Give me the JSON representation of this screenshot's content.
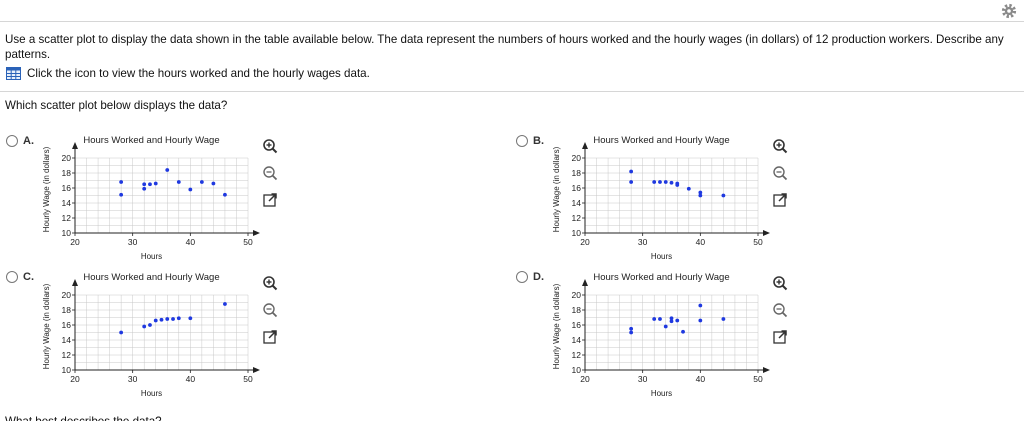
{
  "question": {
    "text": "Use a scatter plot to display the data shown in the table available below. The data represent the numbers of hours worked and the hourly wages (in dollars) of 12 production workers. Describe any patterns.",
    "data_link": "Click the icon to view the hours worked and the hourly wages data.",
    "sub_question": "Which scatter plot below displays the data?",
    "next_question": "What best describes the data?"
  },
  "icons": {
    "settings": "gear-icon",
    "data_table": "table-icon",
    "zoom_in": "zoom-in-icon",
    "zoom_out": "zoom-out-icon",
    "open_new": "open-in-new-window-icon"
  },
  "colors": {
    "points": "#1f39e0",
    "grid": "#c8c8c8",
    "accent": "#2a62b8"
  },
  "options": [
    {
      "letter": "A."
    },
    {
      "letter": "B."
    },
    {
      "letter": "C."
    },
    {
      "letter": "D."
    }
  ],
  "chart_data": [
    {
      "type": "scatter",
      "option": "A",
      "title": "Hours Worked and Hourly Wage",
      "xlabel": "Hours",
      "ylabel": "Hourly Wage (in dollars)",
      "xlim": [
        20,
        50
      ],
      "ylim": [
        10,
        20
      ],
      "xticks": [
        20,
        30,
        40,
        50
      ],
      "yticks": [
        10,
        12,
        14,
        16,
        18,
        20
      ],
      "x": [
        28,
        28,
        32,
        32,
        33,
        34,
        36,
        38,
        40,
        42,
        44,
        46
      ],
      "y": [
        16.8,
        15.1,
        16.5,
        15.9,
        16.5,
        16.6,
        18.4,
        16.8,
        15.8,
        16.8,
        16.6,
        15.1
      ]
    },
    {
      "type": "scatter",
      "option": "B",
      "title": "Hours Worked and Hourly Wage",
      "xlabel": "Hours",
      "ylabel": "Hourly Wage (in dollars)",
      "xlim": [
        20,
        50
      ],
      "ylim": [
        10,
        20
      ],
      "xticks": [
        20,
        30,
        40,
        50
      ],
      "yticks": [
        10,
        12,
        14,
        16,
        18,
        20
      ],
      "x": [
        28,
        28,
        32,
        33,
        34,
        35,
        36,
        36,
        38,
        40,
        40,
        44
      ],
      "y": [
        18.2,
        16.8,
        16.8,
        16.8,
        16.8,
        16.7,
        16.6,
        16.4,
        15.9,
        15.4,
        15.0,
        15.0
      ]
    },
    {
      "type": "scatter",
      "option": "C",
      "title": "Hours Worked and Hourly Wage",
      "xlabel": "Hours",
      "ylabel": "Hourly Wage (in dollars)",
      "xlim": [
        20,
        50
      ],
      "ylim": [
        10,
        20
      ],
      "xticks": [
        20,
        30,
        40,
        50
      ],
      "yticks": [
        10,
        12,
        14,
        16,
        18,
        20
      ],
      "x": [
        28,
        32,
        33,
        34,
        35,
        36,
        37,
        38,
        40,
        46
      ],
      "y": [
        15.0,
        15.8,
        16.0,
        16.6,
        16.7,
        16.8,
        16.8,
        16.9,
        16.9,
        18.8
      ]
    },
    {
      "type": "scatter",
      "option": "D",
      "title": "Hours Worked and Hourly Wage",
      "xlabel": "Hours",
      "ylabel": "Hourly Wage (in dollars)",
      "xlim": [
        20,
        50
      ],
      "ylim": [
        10,
        20
      ],
      "xticks": [
        20,
        30,
        40,
        50
      ],
      "yticks": [
        10,
        12,
        14,
        16,
        18,
        20
      ],
      "x": [
        28,
        28,
        32,
        33,
        34,
        35,
        35,
        36,
        37,
        40,
        40,
        44
      ],
      "y": [
        15.5,
        15.0,
        16.8,
        16.8,
        15.8,
        16.9,
        16.5,
        16.6,
        15.1,
        18.6,
        16.6,
        16.8
      ]
    }
  ]
}
